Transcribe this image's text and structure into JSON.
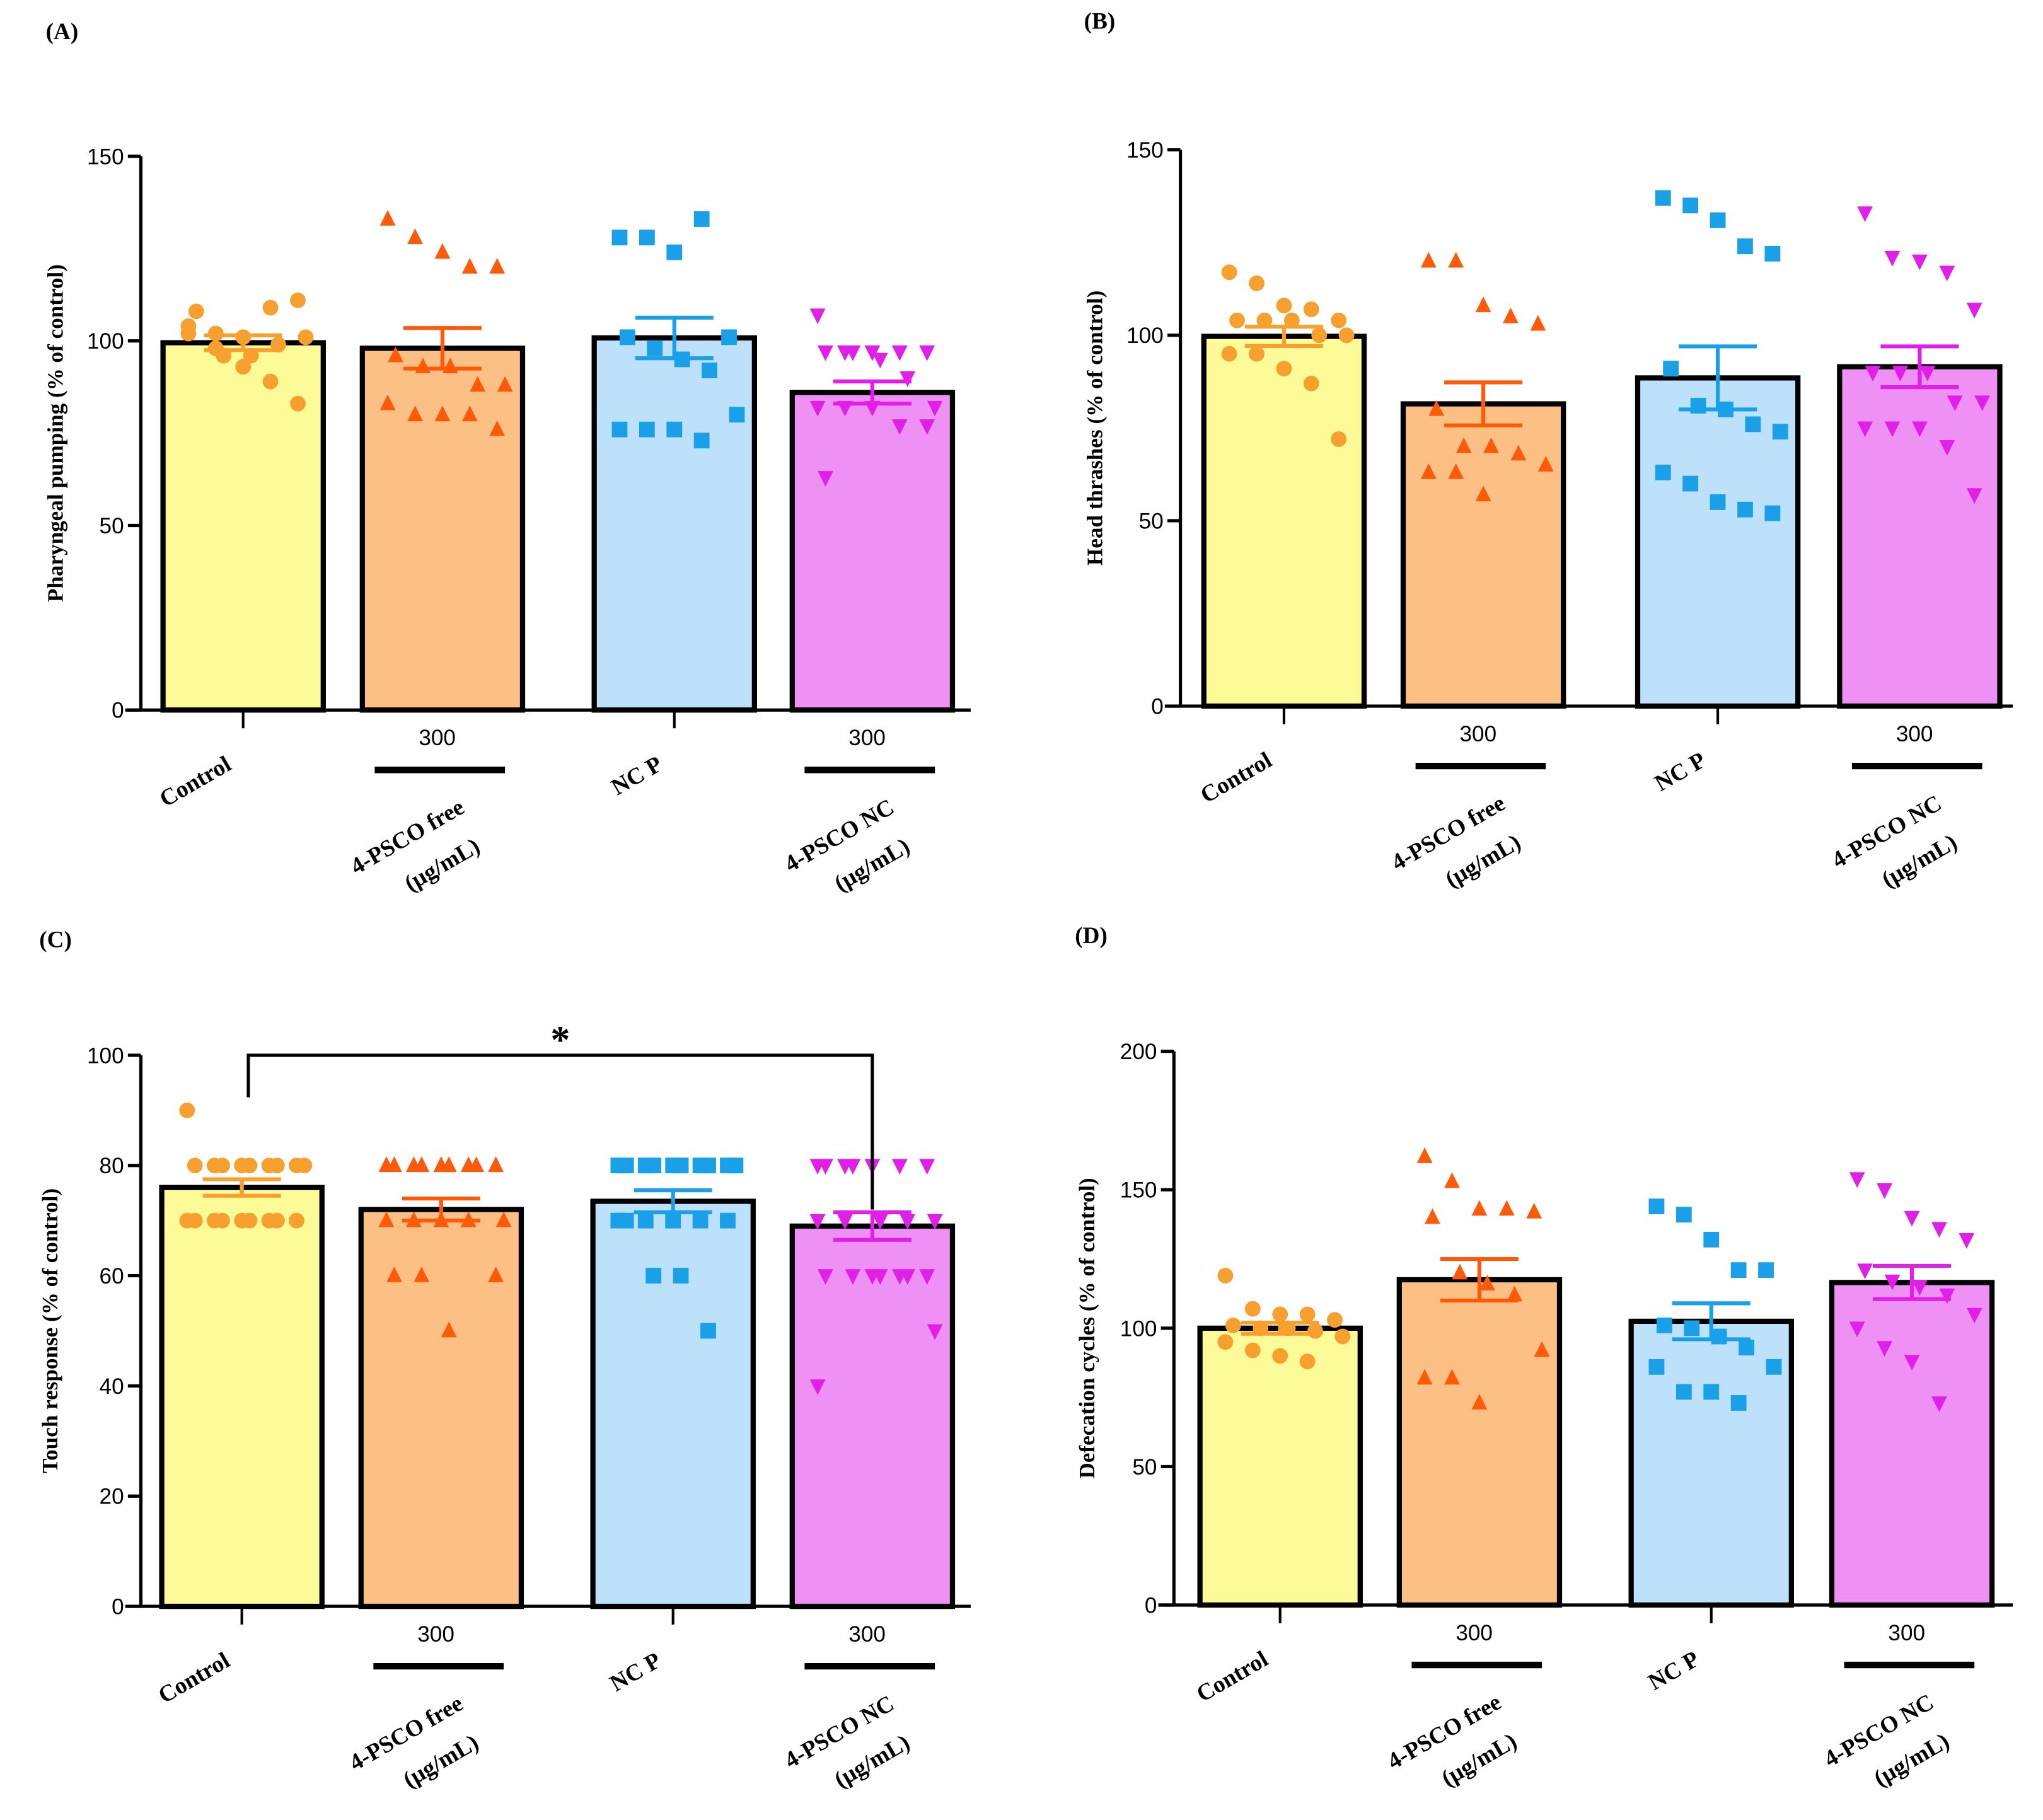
{
  "colors": {
    "groups": [
      {
        "marker": "#f7a030",
        "fill": "#fdfa98",
        "shape": "circle"
      },
      {
        "marker": "#ff5a0a",
        "fill": "#fcc085",
        "shape": "triangle-up"
      },
      {
        "marker": "#1aa0e8",
        "fill": "#bde0fb",
        "shape": "square"
      },
      {
        "marker": "#e020e8",
        "fill": "#ef90f5",
        "shape": "triangle-down"
      }
    ]
  },
  "categories": [
    "Control",
    "4-PSCO free",
    "NC P",
    "4-PSCO NC"
  ],
  "dose_label": "300",
  "unit_label": "(μg/mL)",
  "chart_data": [
    {
      "panel": "(A)",
      "type": "bar",
      "ylabel": "Pharyngeal pumping (% of control)",
      "ylim": [
        0,
        150
      ],
      "yticks": [
        0,
        50,
        100,
        150
      ],
      "series": [
        {
          "name": "Control",
          "mean": 99.5,
          "sem": 2,
          "points": [
            102,
            102,
            101,
            109,
            111,
            108,
            96,
            96,
            99,
            101,
            104,
            98,
            93,
            89,
            83
          ]
        },
        {
          "name": "4-PSCO free",
          "mean": 98,
          "sem": 5.5,
          "points": [
            133,
            128,
            124,
            120,
            120,
            96,
            93,
            93,
            88,
            88,
            83,
            80,
            80,
            80,
            76
          ]
        },
        {
          "name": "NC P",
          "mean": 100.8,
          "sem": 5.5,
          "points": [
            128,
            128,
            124,
            133,
            101,
            101,
            98,
            95,
            92,
            80,
            76,
            76,
            76,
            73
          ]
        },
        {
          "name": "4-PSCO NC",
          "mean": 86,
          "sem": 3,
          "points": [
            107,
            97,
            97,
            97,
            97,
            97,
            97,
            95,
            90,
            82,
            82,
            82,
            82,
            77,
            77,
            63
          ]
        }
      ]
    },
    {
      "panel": "(B)",
      "type": "bar",
      "ylabel": "Head thrashes (% of control)",
      "ylim": [
        0,
        150
      ],
      "yticks": [
        0,
        50,
        100,
        150
      ],
      "series": [
        {
          "name": "Control",
          "mean": 99.7,
          "sem": 2.6,
          "points": [
            117,
            114,
            108,
            107,
            104,
            104,
            104,
            104,
            100,
            100,
            95,
            95,
            91,
            87,
            72
          ]
        },
        {
          "name": "4-PSCO free",
          "mean": 81.5,
          "sem": 5.8,
          "points": [
            120,
            120,
            108,
            105,
            103,
            80,
            70,
            70,
            68,
            65,
            63,
            63,
            57
          ]
        },
        {
          "name": "NC P",
          "mean": 88.5,
          "sem": 8.5,
          "points": [
            137,
            135,
            131,
            124,
            122,
            91,
            81,
            80,
            76,
            74,
            63,
            60,
            55,
            53,
            52
          ]
        },
        {
          "name": "4-PSCO NC",
          "mean": 91.5,
          "sem": 5.5,
          "points": [
            133,
            121,
            120,
            117,
            107,
            90,
            90,
            90,
            82,
            82,
            75,
            75,
            75,
            70,
            57
          ]
        }
      ]
    },
    {
      "panel": "(C)",
      "type": "bar",
      "ylabel": "Touch response (% of control)",
      "ylim": [
        0,
        100
      ],
      "yticks": [
        0,
        20,
        40,
        60,
        80,
        100
      ],
      "significance": {
        "from": "Control",
        "to": "4-PSCO NC",
        "label": "*"
      },
      "series": [
        {
          "name": "Control",
          "mean": 76,
          "sem": 1.5,
          "points": [
            90,
            80,
            80,
            80,
            80,
            80,
            80,
            80,
            80,
            80,
            70,
            70,
            70,
            70,
            70,
            70,
            70,
            70,
            70
          ]
        },
        {
          "name": "4-PSCO free",
          "mean": 72,
          "sem": 2,
          "points": [
            80,
            80,
            80,
            80,
            80,
            80,
            80,
            80,
            80,
            70,
            70,
            70,
            70,
            70,
            60,
            60,
            60,
            50
          ]
        },
        {
          "name": "NC P",
          "mean": 73.5,
          "sem": 2,
          "points": [
            80,
            80,
            80,
            80,
            80,
            80,
            80,
            80,
            80,
            80,
            70,
            70,
            70,
            70,
            70,
            70,
            60,
            60,
            50
          ]
        },
        {
          "name": "4-PSCO NC",
          "mean": 69,
          "sem": 2.5,
          "points": [
            80,
            80,
            80,
            80,
            80,
            80,
            80,
            70,
            70,
            70,
            70,
            70,
            60,
            60,
            60,
            60,
            60,
            60,
            60,
            50,
            40
          ]
        }
      ]
    },
    {
      "panel": "(D)",
      "type": "bar",
      "ylabel": "Defecation cycles (% of control)",
      "ylim": [
        0,
        200
      ],
      "yticks": [
        0,
        50,
        100,
        150,
        200
      ],
      "series": [
        {
          "name": "Control",
          "mean": 100,
          "sem": 2,
          "points": [
            119,
            107,
            105,
            105,
            103,
            101,
            100,
            100,
            99,
            97,
            95,
            92,
            90,
            88
          ]
        },
        {
          "name": "4-PSCO free",
          "mean": 117.5,
          "sem": 7.5,
          "points": [
            162,
            153,
            143,
            143,
            142,
            140,
            120,
            116,
            112,
            92,
            82,
            82,
            73
          ]
        },
        {
          "name": "NC P",
          "mean": 102.5,
          "sem": 6.5,
          "points": [
            144,
            141,
            132,
            121,
            121,
            101,
            100,
            97,
            93,
            86,
            86,
            77,
            77,
            73
          ]
        },
        {
          "name": "4-PSCO NC",
          "mean": 116.5,
          "sem": 6,
          "points": [
            154,
            150,
            140,
            136,
            132,
            121,
            117,
            115,
            112,
            105,
            100,
            93,
            88,
            73
          ]
        }
      ]
    }
  ]
}
